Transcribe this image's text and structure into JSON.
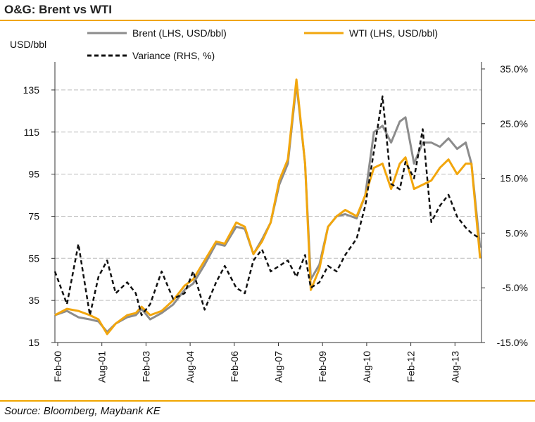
{
  "header": {
    "title": "O&G: Brent vs WTI"
  },
  "footer": {
    "source": "Source: Bloomberg, Maybank KE"
  },
  "colors": {
    "brent": "#8c8c8c",
    "wti": "#f2a60d",
    "variance": "#111111",
    "accent": "#f0a500",
    "grid": "#bdbdbd"
  },
  "chart_data": {
    "type": "line",
    "title": "O&G: Brent vs WTI",
    "ylabel_left": "USD/bbl",
    "ylim_left": [
      15,
      145
    ],
    "ylim_right": [
      -15,
      35
    ],
    "left_ticks": [
      "15",
      "35",
      "55",
      "75",
      "95",
      "115",
      "135"
    ],
    "right_ticks": [
      "-15.0%",
      "-5.0%",
      "5.0%",
      "15.0%",
      "25.0%",
      "35.0%"
    ],
    "x_ticks": [
      "Feb-00",
      "Aug-01",
      "Feb-03",
      "Aug-04",
      "Feb-06",
      "Aug-07",
      "Feb-09",
      "Aug-10",
      "Feb-12",
      "Aug-13"
    ],
    "grid": true,
    "legend": {
      "position": "top",
      "items": [
        "Brent (LHS, USD/bbl)",
        "WTI (LHS, USD/bbl)",
        "Variance (RHS, %)"
      ]
    },
    "x": [
      2000.08,
      2000.5,
      2000.9,
      2001.3,
      2001.6,
      2001.9,
      2002.2,
      2002.6,
      2002.9,
      2003.1,
      2003.4,
      2003.8,
      2004.2,
      2004.6,
      2004.9,
      2005.3,
      2005.7,
      2006.0,
      2006.4,
      2006.7,
      2007.0,
      2007.3,
      2007.6,
      2007.9,
      2008.2,
      2008.5,
      2008.8,
      2009.0,
      2009.3,
      2009.6,
      2009.9,
      2010.2,
      2010.6,
      2010.9,
      2011.2,
      2011.5,
      2011.8,
      2012.1,
      2012.3,
      2012.6,
      2012.9,
      2013.2,
      2013.5,
      2013.8,
      2014.1,
      2014.4,
      2014.6,
      2014.9
    ],
    "series": [
      {
        "name": "Brent (LHS, USD/bbl)",
        "values": [
          28,
          30,
          27,
          26,
          25,
          20,
          24,
          27,
          28,
          31,
          26,
          29,
          33,
          40,
          43,
          52,
          62,
          61,
          70,
          69,
          57,
          64,
          72,
          90,
          100,
          138,
          100,
          45,
          52,
          70,
          75,
          76,
          74,
          85,
          115,
          118,
          110,
          120,
          122,
          100,
          110,
          110,
          108,
          112,
          107,
          110,
          100,
          60
        ]
      },
      {
        "name": "WTI (LHS, USD/bbl)",
        "values": [
          28,
          31,
          30,
          28,
          26,
          19,
          24,
          28,
          29,
          32,
          28,
          30,
          35,
          42,
          45,
          54,
          63,
          62,
          72,
          70,
          57,
          63,
          72,
          92,
          102,
          140,
          100,
          40,
          50,
          70,
          75,
          78,
          75,
          85,
          98,
          100,
          88,
          100,
          103,
          88,
          90,
          92,
          98,
          102,
          95,
          100,
          100,
          55
        ]
      },
      {
        "name": "Variance (RHS, %)",
        "values": [
          -2,
          -8,
          3,
          -10,
          -3,
          0,
          -6,
          -4,
          -6,
          -10,
          -8,
          -2,
          -7,
          -6,
          -2,
          -9,
          -4,
          -1,
          -5,
          -6,
          0,
          2,
          -2,
          -1,
          0,
          -3,
          1,
          -5,
          -4,
          -1,
          -2,
          1,
          4,
          10,
          20,
          30,
          14,
          13,
          18,
          15,
          24,
          7,
          10,
          12,
          8,
          6,
          5,
          4
        ]
      }
    ]
  }
}
